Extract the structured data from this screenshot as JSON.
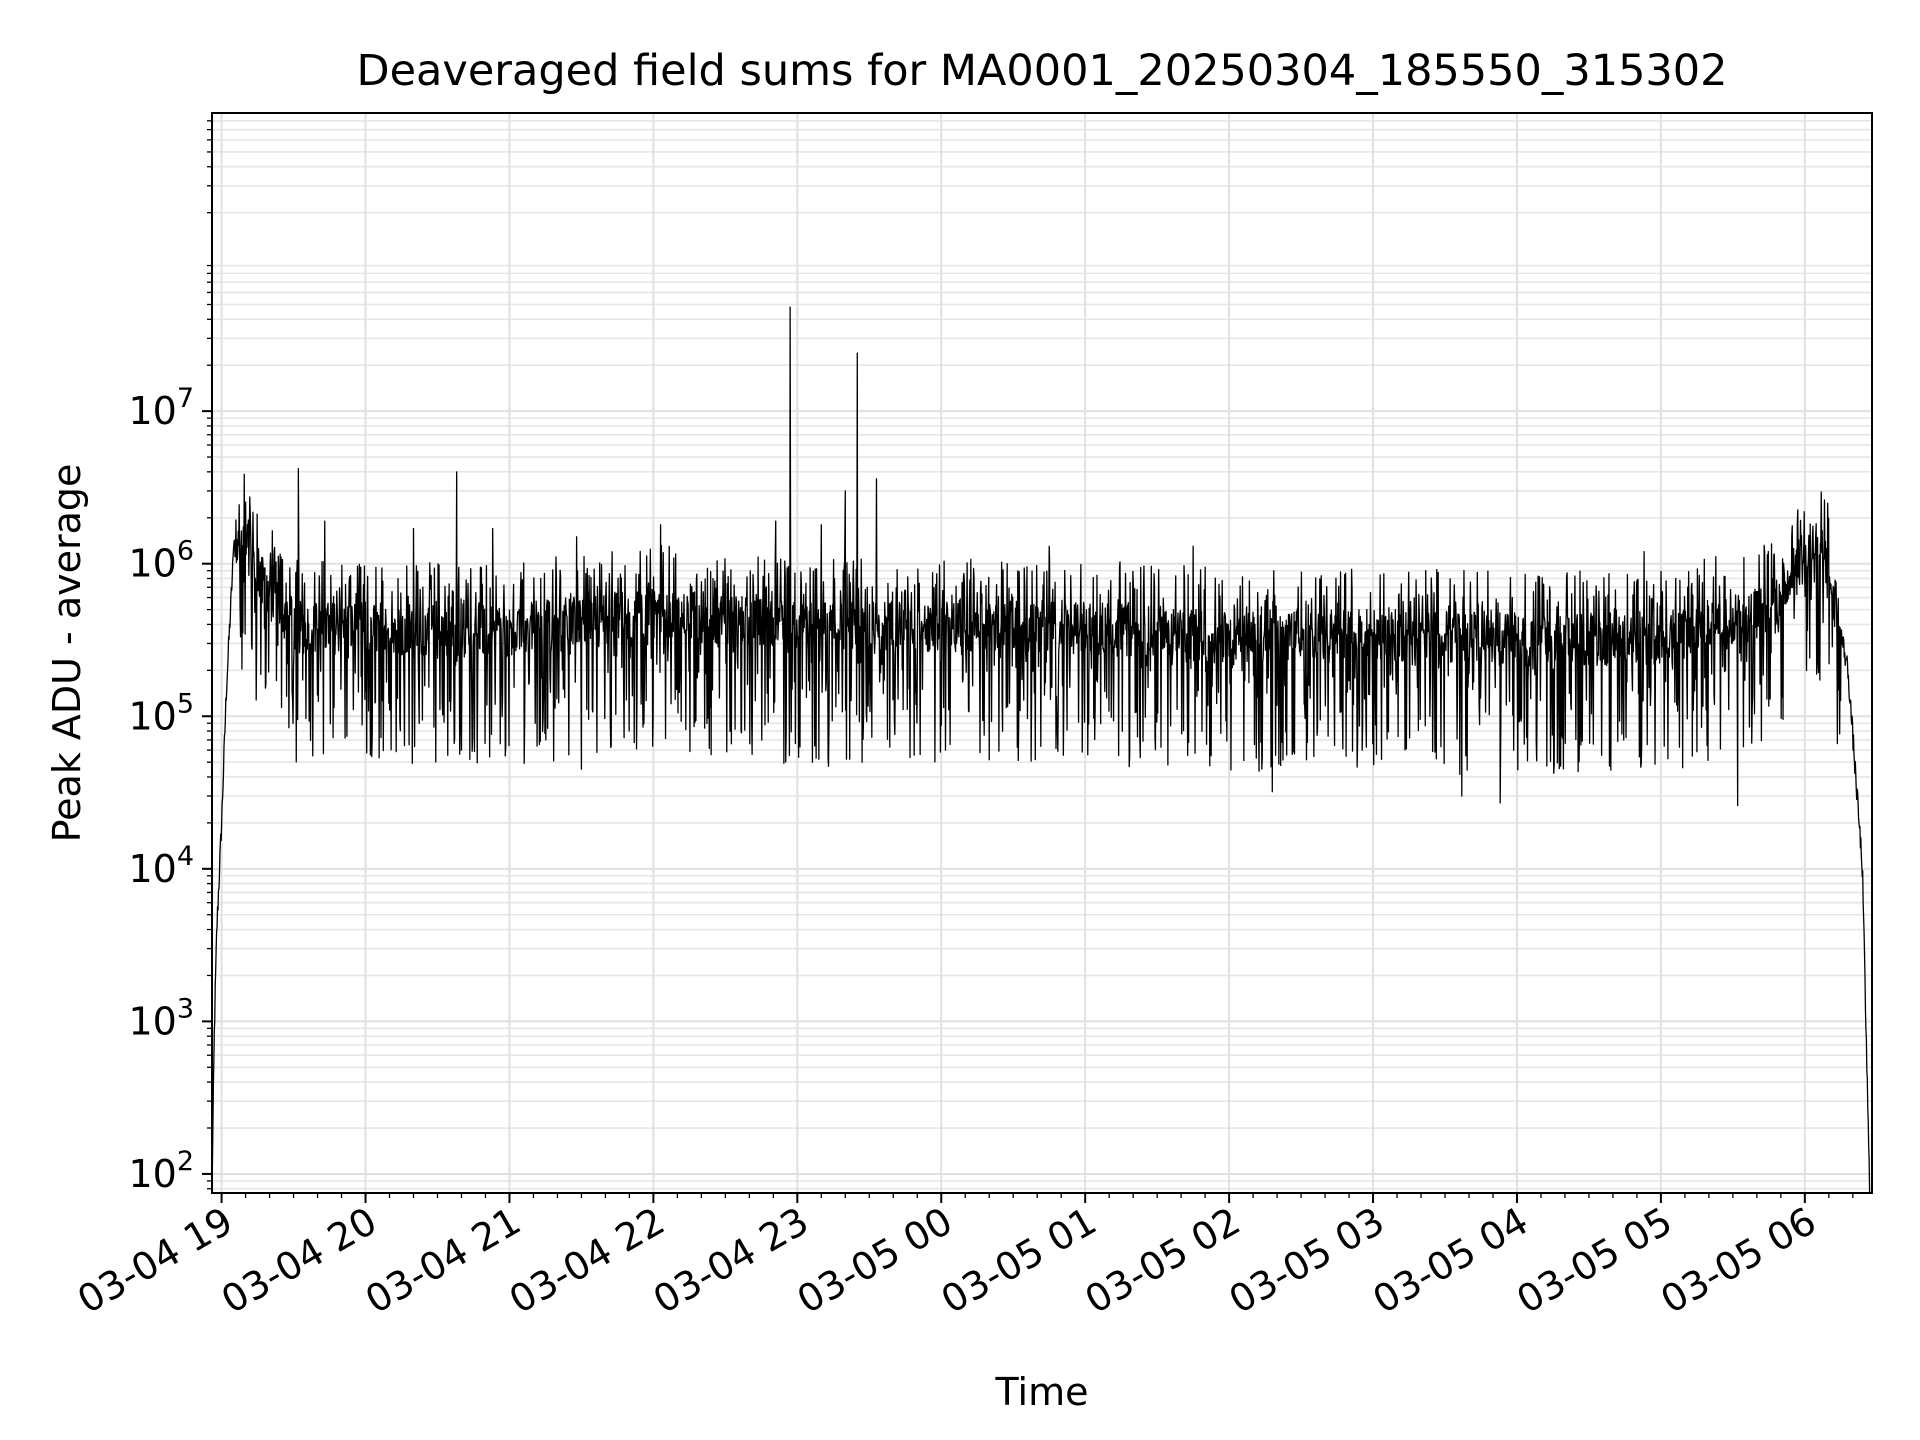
{
  "chart_data": {
    "type": "line",
    "title": "Deaveraged field sums for MA0001_20250304_185550_315302",
    "xlabel": "Time",
    "ylabel": "Peak ADU - average",
    "y_scale": "log",
    "ylim": [
      75,
      900000000
    ],
    "xlim": [
      "2025-03-04 18:56",
      "2025-03-05 06:28"
    ],
    "grid": {
      "major": true,
      "minor": true
    },
    "x_ticks": [
      {
        "t": "2025-03-04 19:00",
        "label": "03-04 19"
      },
      {
        "t": "2025-03-04 20:00",
        "label": "03-04 20"
      },
      {
        "t": "2025-03-04 21:00",
        "label": "03-04 21"
      },
      {
        "t": "2025-03-04 22:00",
        "label": "03-04 22"
      },
      {
        "t": "2025-03-04 23:00",
        "label": "03-04 23"
      },
      {
        "t": "2025-03-05 00:00",
        "label": "03-05 00"
      },
      {
        "t": "2025-03-05 01:00",
        "label": "03-05 01"
      },
      {
        "t": "2025-03-05 02:00",
        "label": "03-05 02"
      },
      {
        "t": "2025-03-05 03:00",
        "label": "03-05 03"
      },
      {
        "t": "2025-03-05 04:00",
        "label": "03-05 04"
      },
      {
        "t": "2025-03-05 05:00",
        "label": "03-05 05"
      },
      {
        "t": "2025-03-05 06:00",
        "label": "03-05 06"
      }
    ],
    "y_ticks": [
      {
        "v": 100,
        "base": "10",
        "exp": "2"
      },
      {
        "v": 1000,
        "base": "10",
        "exp": "3"
      },
      {
        "v": 10000,
        "base": "10",
        "exp": "4"
      },
      {
        "v": 100000,
        "base": "10",
        "exp": "5"
      },
      {
        "v": 1000000,
        "base": "10",
        "exp": "6"
      },
      {
        "v": 10000000,
        "base": "10",
        "exp": "7"
      }
    ],
    "series": [
      {
        "color": "#000000",
        "baseline_points": [
          {
            "t": "2025-03-04 18:56",
            "y": 80
          },
          {
            "t": "2025-03-04 18:57",
            "y": 900
          },
          {
            "t": "2025-03-04 18:58",
            "y": 4000
          },
          {
            "t": "2025-03-04 19:00",
            "y": 20000
          },
          {
            "t": "2025-03-04 19:02",
            "y": 150000
          },
          {
            "t": "2025-03-04 19:05",
            "y": 1200000
          },
          {
            "t": "2025-03-04 19:10",
            "y": 1400000
          },
          {
            "t": "2025-03-04 19:18",
            "y": 700000
          },
          {
            "t": "2025-03-04 19:30",
            "y": 380000
          },
          {
            "t": "2025-03-04 20:00",
            "y": 380000
          },
          {
            "t": "2025-03-04 21:00",
            "y": 360000
          },
          {
            "t": "2025-03-04 22:00",
            "y": 480000
          },
          {
            "t": "2025-03-04 22:30",
            "y": 420000
          },
          {
            "t": "2025-03-04 23:00",
            "y": 380000
          },
          {
            "t": "2025-03-05 00:00",
            "y": 380000
          },
          {
            "t": "2025-03-05 01:00",
            "y": 380000
          },
          {
            "t": "2025-03-05 02:00",
            "y": 330000
          },
          {
            "t": "2025-03-05 03:00",
            "y": 340000
          },
          {
            "t": "2025-03-05 04:00",
            "y": 320000
          },
          {
            "t": "2025-03-05 05:00",
            "y": 320000
          },
          {
            "t": "2025-03-05 05:45",
            "y": 500000
          },
          {
            "t": "2025-03-05 06:00",
            "y": 1100000
          },
          {
            "t": "2025-03-05 06:03",
            "y": 1300000
          },
          {
            "t": "2025-03-05 06:10",
            "y": 900000
          },
          {
            "t": "2025-03-05 06:18",
            "y": 200000
          },
          {
            "t": "2025-03-05 06:24",
            "y": 10000
          },
          {
            "t": "2025-03-05 06:27",
            "y": 80
          }
        ],
        "noise_low_decades": 0.9,
        "noise_high_decades": 0.45,
        "spikes": [
          {
            "t": "2025-03-04 19:32",
            "y": 4200000
          },
          {
            "t": "2025-03-04 19:38",
            "y": 55000
          },
          {
            "t": "2025-03-04 19:43",
            "y": 1900000
          },
          {
            "t": "2025-03-04 20:20",
            "y": 1700000
          },
          {
            "t": "2025-03-04 20:38",
            "y": 4000000
          },
          {
            "t": "2025-03-04 20:40",
            "y": 60000
          },
          {
            "t": "2025-03-04 20:53",
            "y": 1700000
          },
          {
            "t": "2025-03-04 21:28",
            "y": 1500000
          },
          {
            "t": "2025-03-04 21:30",
            "y": 45000
          },
          {
            "t": "2025-03-04 22:03",
            "y": 1800000
          },
          {
            "t": "2025-03-04 22:51",
            "y": 1900000
          },
          {
            "t": "2025-03-04 22:57",
            "y": 48000000
          },
          {
            "t": "2025-03-04 23:10",
            "y": 1800000
          },
          {
            "t": "2025-03-04 23:13",
            "y": 47000
          },
          {
            "t": "2025-03-04 23:20",
            "y": 3000000
          },
          {
            "t": "2025-03-04 23:25",
            "y": 24000000
          },
          {
            "t": "2025-03-04 23:27",
            "y": 50000
          },
          {
            "t": "2025-03-04 23:33",
            "y": 3600000
          },
          {
            "t": "2025-03-05 00:45",
            "y": 1300000
          },
          {
            "t": "2025-03-05 01:45",
            "y": 1300000
          },
          {
            "t": "2025-03-05 02:18",
            "y": 32000
          },
          {
            "t": "2025-03-05 03:37",
            "y": 30000
          },
          {
            "t": "2025-03-05 03:53",
            "y": 27000
          },
          {
            "t": "2025-03-05 05:32",
            "y": 26000
          },
          {
            "t": "2025-03-05 04:53",
            "y": 1200000
          }
        ]
      }
    ]
  }
}
